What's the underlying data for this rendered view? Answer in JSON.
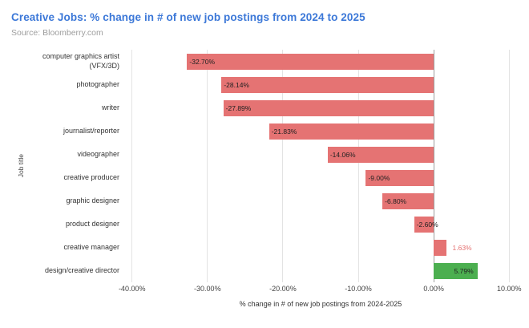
{
  "header": {
    "title": "Creative Jobs: % change in # of new job postings from 2024 to 2025",
    "source": "Source: Bloomberry.com"
  },
  "colors": {
    "title_blue": "#3c78d8",
    "bar_negative": "#e57373",
    "bar_positive_green": "#4caf50",
    "gridline": "#e3e3e3",
    "zero_line": "#9e9e9e",
    "value_label": "#212121"
  },
  "chart_data": {
    "type": "bar",
    "orientation": "horizontal",
    "categories": [
      "computer graphics artist (VFX/3D)",
      "photographer",
      "writer",
      "journalist/reporter",
      "videographer",
      "creative producer",
      "graphic designer",
      "product designer",
      "creative manager",
      "design/creative director"
    ],
    "values": [
      -32.7,
      -28.14,
      -27.89,
      -21.83,
      -14.06,
      -9.0,
      -6.8,
      -2.6,
      1.63,
      5.79
    ],
    "value_labels": [
      "-32.70%",
      "-28.14%",
      "-27.89%",
      "-21.83%",
      "-14.06%",
      "-9.00%",
      "-6.80%",
      "-2.60%",
      "1.63%",
      "5.79%"
    ],
    "bar_colors": [
      "#e57373",
      "#e57373",
      "#e57373",
      "#e57373",
      "#e57373",
      "#e57373",
      "#e57373",
      "#e57373",
      "#e57373",
      "#4caf50"
    ],
    "label_placements": [
      "inside-start",
      "inside-start",
      "inside-start",
      "inside-start",
      "inside-start",
      "inside-start",
      "inside-start",
      "inside-start",
      "outside-end",
      "inside-end"
    ],
    "xlabel": "% change in # of new job postings from 2024-2025",
    "ylabel": "Job title",
    "xlim": [
      -40.5,
      10.5
    ],
    "xticks": [
      -40,
      -30,
      -20,
      -10,
      0,
      10
    ],
    "xtick_labels": [
      "-40.00%",
      "-30.00%",
      "-20.00%",
      "-10.00%",
      "0.00%",
      "10.00%"
    ],
    "grid": true,
    "legend": "none"
  }
}
